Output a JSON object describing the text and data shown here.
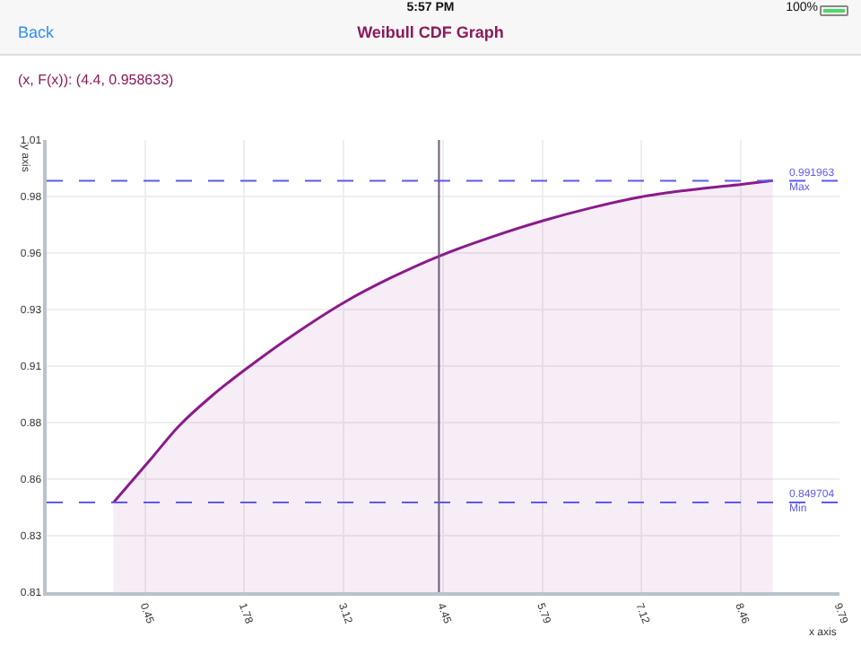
{
  "chart_data": {
    "type": "area",
    "title": "Weibull CDF Graph",
    "subtitle": "(x, F(x)): (4.4, 0.958633)",
    "xlabel": "x axis",
    "ylabel": "y axis",
    "annotations": [
      "Back",
      "5:57 PM",
      "100%"
    ],
    "x": [
      0.02,
      0.5,
      0.91,
      1.35,
      1.79,
      2.45,
      3.12,
      3.75,
      4.4,
      5.1,
      5.81,
      6.45,
      7.1,
      7.8,
      8.47,
      8.89
    ],
    "series": [
      {
        "color": "#8b1a8b",
        "values": [
          0.8497,
          0.868,
          0.8838,
          0.897,
          0.9084,
          0.924,
          0.9381,
          0.949,
          0.9586,
          0.967,
          0.9744,
          0.98,
          0.9847,
          0.988,
          0.9904,
          0.992
        ]
      }
    ],
    "xlim": [
      -0.88,
      9.79
    ],
    "xticks": [
      0.45,
      1.78,
      3.12,
      4.45,
      5.79,
      7.12,
      8.46,
      9.79
    ],
    "ylim": [
      0.81,
      1.01
    ],
    "yticks": [
      0.81,
      {
        "value": 0.835,
        "label": "0.83"
      },
      0.86,
      {
        "value": 0.885,
        "label": "0.88"
      },
      0.91,
      {
        "value": 0.935,
        "label": "0.93"
      },
      0.96,
      {
        "value": 0.985,
        "label": "0.98"
      },
      1.01
    ],
    "ref_lines": [
      {
        "axis": "y",
        "value": 0.991963,
        "label": "0.991963\nMax",
        "color": "#5b5bf0",
        "line_style": "dashed"
      },
      {
        "axis": "y",
        "value": 0.849704,
        "label": "0.849704\nMin",
        "color": "#5b5bf0",
        "line_style": "dashed"
      },
      {
        "axis": "x",
        "value": 4.4,
        "color": "#6b5b7b",
        "line_style": "solid"
      }
    ],
    "grid": true,
    "marker": "none",
    "line_style": "solid"
  }
}
